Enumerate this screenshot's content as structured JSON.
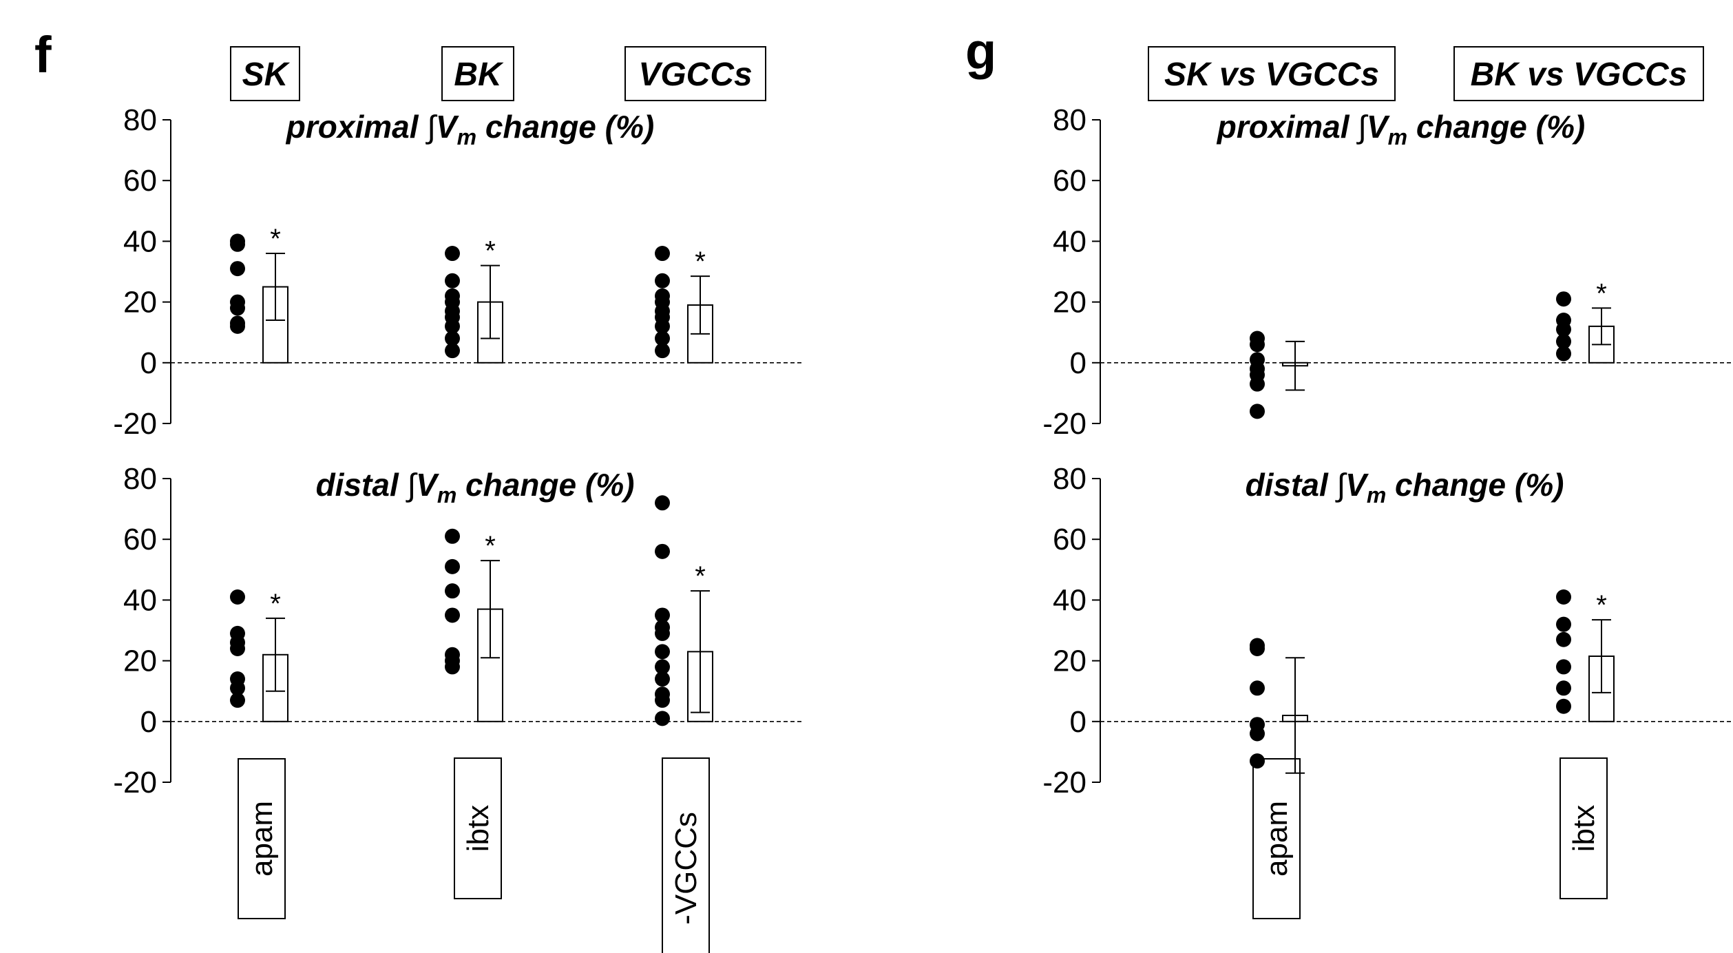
{
  "panels": {
    "f": {
      "letter": "f",
      "groups": [
        "SK",
        "BK",
        "VGCCs"
      ],
      "categories": [
        "apam",
        "ibtx",
        "-VGCCs"
      ]
    },
    "g": {
      "letter": "g",
      "groups": [
        "SK vs VGCCs",
        "BK vs VGCCs"
      ],
      "categories": [
        "apam",
        "ibtx"
      ]
    }
  },
  "titles": {
    "proximal_pre": "proximal ",
    "distal_pre": "distal ",
    "integral": "∫",
    "v": "V",
    "sub": "m",
    "post": " change (%)"
  },
  "chart_data": [
    {
      "id": "f-proximal",
      "type": "bar",
      "title": "proximal ∫Vm change (%)",
      "categories": [
        "apam",
        "ibtx",
        "-VGCCs"
      ],
      "values": [
        25,
        20,
        19
      ],
      "error": [
        11,
        12,
        9.5
      ],
      "significance": [
        "*",
        "*",
        "*"
      ],
      "points": [
        [
          40,
          39,
          31,
          20,
          18,
          13,
          12
        ],
        [
          36,
          27,
          22,
          20,
          17,
          15,
          12,
          8,
          4
        ],
        [
          36,
          27,
          22,
          20,
          17,
          15,
          12,
          8,
          4
        ]
      ],
      "ylim": [
        -20,
        80
      ],
      "yticks": [
        80,
        60,
        40,
        20,
        0,
        -20
      ]
    },
    {
      "id": "f-distal",
      "type": "bar",
      "title": "distal ∫Vm change (%)",
      "categories": [
        "apam",
        "ibtx",
        "-VGCCs"
      ],
      "values": [
        22,
        37,
        23
      ],
      "error": [
        12,
        16,
        20
      ],
      "significance": [
        "*",
        "*",
        "*"
      ],
      "points": [
        [
          41,
          29,
          26,
          24,
          14,
          11,
          7
        ],
        [
          61,
          51,
          43,
          35,
          22,
          20,
          18
        ],
        [
          72,
          56,
          35,
          31,
          29,
          23,
          18,
          14,
          9,
          7,
          1
        ]
      ],
      "ylim": [
        -20,
        80
      ],
      "yticks": [
        80,
        60,
        40,
        20,
        0,
        -20
      ]
    },
    {
      "id": "g-proximal",
      "type": "bar",
      "title": "proximal ∫Vm change (%)",
      "categories": [
        "apam",
        "ibtx"
      ],
      "values": [
        -1,
        12
      ],
      "error": [
        8,
        6
      ],
      "significance": [
        "",
        "*"
      ],
      "points": [
        [
          8,
          6,
          1,
          -2,
          -4,
          -7,
          -16
        ],
        [
          21,
          14,
          11,
          7,
          3
        ]
      ],
      "ylim": [
        -20,
        80
      ],
      "yticks": [
        80,
        60,
        40,
        20,
        0,
        -20
      ]
    },
    {
      "id": "g-distal",
      "type": "bar",
      "title": "distal ∫Vm change (%)",
      "categories": [
        "apam",
        "ibtx"
      ],
      "values": [
        2,
        21.5
      ],
      "error": [
        19,
        12
      ],
      "significance": [
        "",
        "*"
      ],
      "points": [
        [
          25,
          24,
          11,
          -1,
          -4,
          -13
        ],
        [
          41,
          32,
          27,
          18,
          11,
          5
        ]
      ],
      "ylim": [
        -20,
        80
      ],
      "yticks": [
        80,
        60,
        40,
        20,
        0,
        -20
      ]
    }
  ]
}
